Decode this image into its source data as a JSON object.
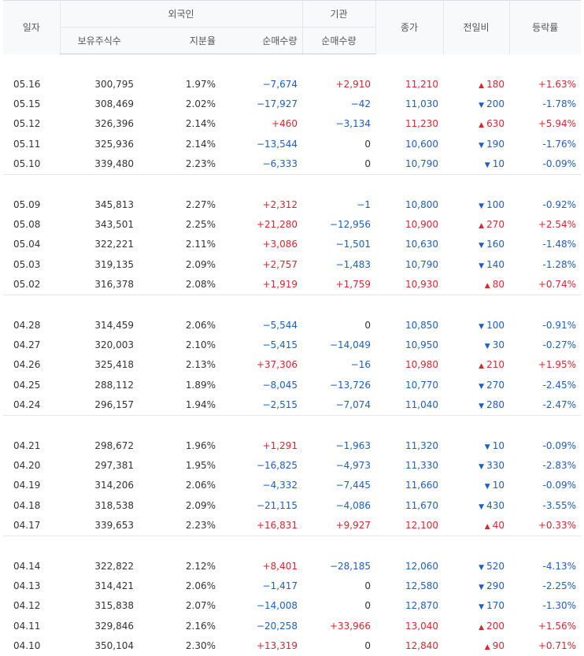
{
  "header": {
    "date": "일자",
    "foreign": "외국인",
    "institution": "기관",
    "shares_held": "보유주식수",
    "holding_ratio": "지분율",
    "net_qty_foreign": "순매수량",
    "net_qty_inst": "순매수량",
    "close": "종가",
    "change": "전일비",
    "change_rate": "등락률"
  },
  "colors": {
    "up": "#e0242d",
    "down": "#1a5fc8",
    "neutral": "#333333"
  },
  "groups": [
    [
      {
        "date": "05.16",
        "shares": "300,795",
        "ratio": "1.97%",
        "fnet": "−7,674",
        "inet": "+2,910",
        "close": "11,210",
        "chg": "180",
        "dir": "up",
        "rate": "+1.63%"
      },
      {
        "date": "05.15",
        "shares": "308,469",
        "ratio": "2.02%",
        "fnet": "−17,927",
        "inet": "−42",
        "close": "11,030",
        "chg": "200",
        "dir": "down",
        "rate": "-1.78%"
      },
      {
        "date": "05.12",
        "shares": "326,396",
        "ratio": "2.14%",
        "fnet": "+460",
        "inet": "−3,134",
        "close": "11,230",
        "chg": "630",
        "dir": "up",
        "rate": "+5.94%"
      },
      {
        "date": "05.11",
        "shares": "325,936",
        "ratio": "2.14%",
        "fnet": "−13,544",
        "inet": "0",
        "close": "10,600",
        "chg": "190",
        "dir": "down",
        "rate": "-1.76%"
      },
      {
        "date": "05.10",
        "shares": "339,480",
        "ratio": "2.23%",
        "fnet": "−6,333",
        "inet": "0",
        "close": "10,790",
        "chg": "10",
        "dir": "down",
        "rate": "-0.09%"
      }
    ],
    [
      {
        "date": "05.09",
        "shares": "345,813",
        "ratio": "2.27%",
        "fnet": "+2,312",
        "inet": "−1",
        "close": "10,800",
        "chg": "100",
        "dir": "down",
        "rate": "-0.92%"
      },
      {
        "date": "05.08",
        "shares": "343,501",
        "ratio": "2.25%",
        "fnet": "+21,280",
        "inet": "−12,956",
        "close": "10,900",
        "chg": "270",
        "dir": "up",
        "rate": "+2.54%"
      },
      {
        "date": "05.04",
        "shares": "322,221",
        "ratio": "2.11%",
        "fnet": "+3,086",
        "inet": "−1,501",
        "close": "10,630",
        "chg": "160",
        "dir": "down",
        "rate": "-1.48%"
      },
      {
        "date": "05.03",
        "shares": "319,135",
        "ratio": "2.09%",
        "fnet": "+2,757",
        "inet": "−1,483",
        "close": "10,790",
        "chg": "140",
        "dir": "down",
        "rate": "-1.28%"
      },
      {
        "date": "05.02",
        "shares": "316,378",
        "ratio": "2.08%",
        "fnet": "+1,919",
        "inet": "+1,759",
        "close": "10,930",
        "chg": "80",
        "dir": "up",
        "rate": "+0.74%"
      }
    ],
    [
      {
        "date": "04.28",
        "shares": "314,459",
        "ratio": "2.06%",
        "fnet": "−5,544",
        "inet": "0",
        "close": "10,850",
        "chg": "100",
        "dir": "down",
        "rate": "-0.91%"
      },
      {
        "date": "04.27",
        "shares": "320,003",
        "ratio": "2.10%",
        "fnet": "−5,415",
        "inet": "−14,049",
        "close": "10,950",
        "chg": "30",
        "dir": "down",
        "rate": "-0.27%"
      },
      {
        "date": "04.26",
        "shares": "325,418",
        "ratio": "2.13%",
        "fnet": "+37,306",
        "inet": "−16",
        "close": "10,980",
        "chg": "210",
        "dir": "up",
        "rate": "+1.95%"
      },
      {
        "date": "04.25",
        "shares": "288,112",
        "ratio": "1.89%",
        "fnet": "−8,045",
        "inet": "−13,726",
        "close": "10,770",
        "chg": "270",
        "dir": "down",
        "rate": "-2.45%"
      },
      {
        "date": "04.24",
        "shares": "296,157",
        "ratio": "1.94%",
        "fnet": "−2,515",
        "inet": "−7,074",
        "close": "11,040",
        "chg": "280",
        "dir": "down",
        "rate": "-2.47%"
      }
    ],
    [
      {
        "date": "04.21",
        "shares": "298,672",
        "ratio": "1.96%",
        "fnet": "+1,291",
        "inet": "−1,963",
        "close": "11,320",
        "chg": "10",
        "dir": "down",
        "rate": "-0.09%"
      },
      {
        "date": "04.20",
        "shares": "297,381",
        "ratio": "1.95%",
        "fnet": "−16,825",
        "inet": "−4,973",
        "close": "11,330",
        "chg": "330",
        "dir": "down",
        "rate": "-2.83%"
      },
      {
        "date": "04.19",
        "shares": "314,206",
        "ratio": "2.06%",
        "fnet": "−4,332",
        "inet": "−7,445",
        "close": "11,660",
        "chg": "10",
        "dir": "down",
        "rate": "-0.09%"
      },
      {
        "date": "04.18",
        "shares": "318,538",
        "ratio": "2.09%",
        "fnet": "−21,115",
        "inet": "−4,086",
        "close": "11,670",
        "chg": "430",
        "dir": "down",
        "rate": "-3.55%"
      },
      {
        "date": "04.17",
        "shares": "339,653",
        "ratio": "2.23%",
        "fnet": "+16,831",
        "inet": "+9,927",
        "close": "12,100",
        "chg": "40",
        "dir": "up",
        "rate": "+0.33%"
      }
    ],
    [
      {
        "date": "04.14",
        "shares": "322,822",
        "ratio": "2.12%",
        "fnet": "+8,401",
        "inet": "−28,185",
        "close": "12,060",
        "chg": "520",
        "dir": "down",
        "rate": "-4.13%"
      },
      {
        "date": "04.13",
        "shares": "314,421",
        "ratio": "2.06%",
        "fnet": "−1,417",
        "inet": "0",
        "close": "12,580",
        "chg": "290",
        "dir": "down",
        "rate": "-2.25%"
      },
      {
        "date": "04.12",
        "shares": "315,838",
        "ratio": "2.07%",
        "fnet": "−14,008",
        "inet": "0",
        "close": "12,870",
        "chg": "170",
        "dir": "down",
        "rate": "-1.30%"
      },
      {
        "date": "04.11",
        "shares": "329,846",
        "ratio": "2.16%",
        "fnet": "−20,258",
        "inet": "+33,966",
        "close": "13,040",
        "chg": "200",
        "dir": "up",
        "rate": "+1.56%"
      },
      {
        "date": "04.10",
        "shares": "350,104",
        "ratio": "2.30%",
        "fnet": "+13,319",
        "inet": "0",
        "close": "12,840",
        "chg": "90",
        "dir": "up",
        "rate": "+0.71%"
      }
    ]
  ]
}
